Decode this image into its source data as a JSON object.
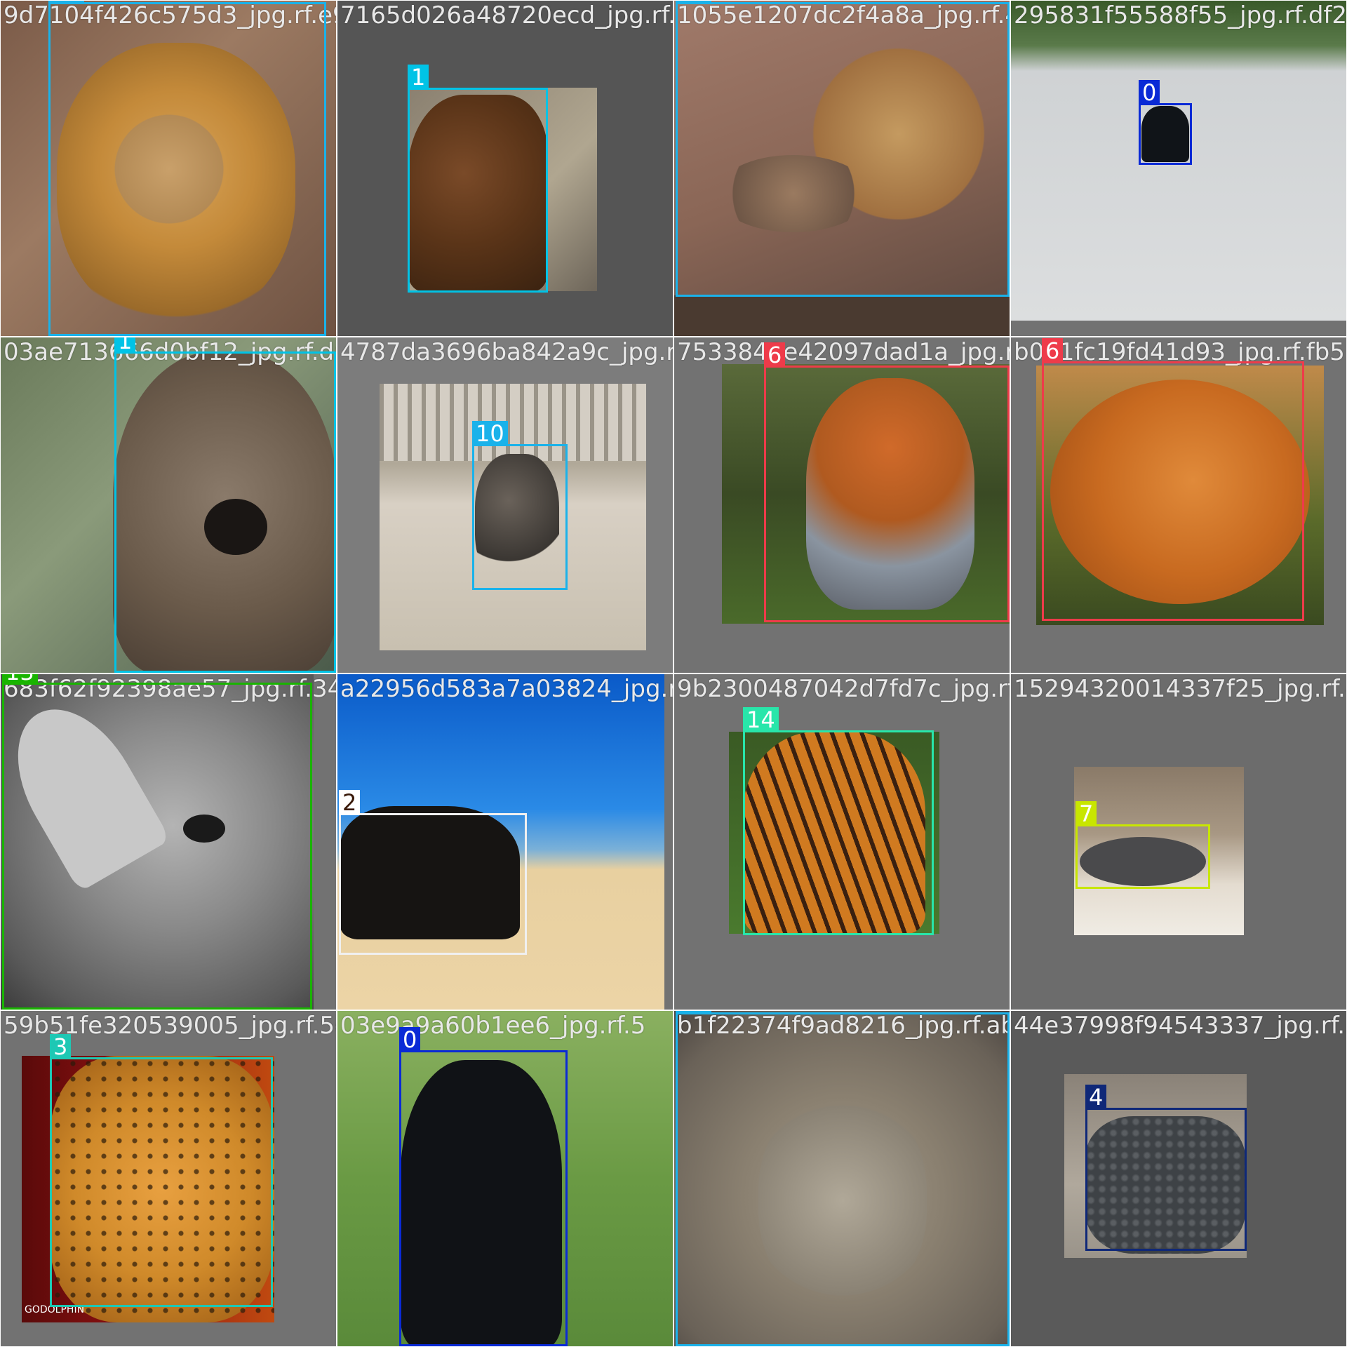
{
  "colors": {
    "class_0": "#0a2ad6",
    "class_1": "#00c3e6",
    "class_2": "#ffffff",
    "class_3": "#1ec8b4",
    "class_4": "#0f2878",
    "class_6": "#ee3b4a",
    "class_7": "#c8e600",
    "class_10": "#1ab2ea",
    "class_13": "#19b400",
    "class_14": "#28e6aa"
  },
  "tiles": [
    {
      "filename": "9d7104f426c575d3_jpg.rf.e97165d026a48720",
      "subject": "lion",
      "boxes": [
        {
          "class_id": "10"
        }
      ]
    },
    {
      "filename": "7165d026a48720ecd_jpg.rf.2",
      "subject": "brown-bear",
      "boxes": [
        {
          "class_id": "1"
        }
      ]
    },
    {
      "filename": "1055e1207dc2f4a8a_jpg.rf.49",
      "subject": "lion",
      "boxes": [
        {
          "class_id": "10"
        }
      ]
    },
    {
      "filename": "295831f55588f55_jpg.rf.df2",
      "subject": "black-bear",
      "boxes": [
        {
          "class_id": "0"
        }
      ]
    },
    {
      "filename": "03ae713666d0bf12_jpg.rf.da",
      "subject": "brown-bear",
      "boxes": [
        {
          "class_id": "1"
        }
      ]
    },
    {
      "filename": "4787da3696ba842a9c_jpg.rf.07",
      "subject": "lion",
      "boxes": [
        {
          "class_id": "10"
        }
      ]
    },
    {
      "filename": "7533843e42097dad1a_jpg.rf.528",
      "subject": "fox",
      "boxes": [
        {
          "class_id": "6"
        }
      ]
    },
    {
      "filename": "b0b1fc19fd41d93_jpg.rf.fb5",
      "subject": "fox",
      "boxes": [
        {
          "class_id": "6"
        }
      ]
    },
    {
      "filename": "683f62f92398ae57_jpg.rf.34",
      "subject": "rhino",
      "boxes": [
        {
          "class_id": "13"
        }
      ]
    },
    {
      "filename": "a22956d583a7a03824_jpg.rf.b9",
      "subject": "cow",
      "boxes": [
        {
          "class_id": "2"
        }
      ]
    },
    {
      "filename": "9b2300487042d7fd7c_jpg.rf.bf5",
      "subject": "tiger",
      "boxes": [
        {
          "class_id": "14"
        }
      ]
    },
    {
      "filename": "15294320014337f25_jpg.rf.e9",
      "subject": "hippo",
      "boxes": [
        {
          "class_id": "7"
        }
      ]
    },
    {
      "filename": "59b51fe320539005_jpg.rf.5e",
      "subject": "cheetah",
      "watermark": "GODOLPHIN",
      "boxes": [
        {
          "class_id": "3"
        }
      ]
    },
    {
      "filename": "03e9a9a60b1ee6_jpg.rf.5",
      "subject": "black-bear",
      "boxes": [
        {
          "class_id": "0"
        }
      ]
    },
    {
      "filename": "b1f22374f9ad8216_jpg.rf.ab",
      "subject": "lion",
      "boxes": [
        {
          "class_id": "10"
        }
      ]
    },
    {
      "filename": "44e37998f94543337_jpg.rf.59",
      "subject": "crocodile",
      "boxes": [
        {
          "class_id": "4"
        }
      ]
    }
  ]
}
